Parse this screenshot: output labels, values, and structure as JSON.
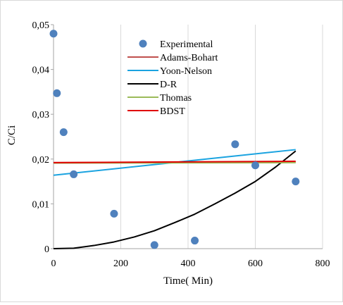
{
  "chart_data": {
    "type": "scatter",
    "title": "",
    "xlabel": "Time( Min)",
    "ylabel": "C/Ci",
    "xlim": [
      0,
      800
    ],
    "ylim": [
      0,
      0.05
    ],
    "x_ticks": [
      0,
      200,
      400,
      600,
      800
    ],
    "y_ticks": [
      0,
      0.01,
      0.02,
      0.03,
      0.04,
      0.05
    ],
    "x_tick_labels": [
      "0",
      "200",
      "400",
      "600",
      "800"
    ],
    "y_tick_labels": [
      "0",
      "0,01",
      "0,02",
      "0,03",
      "0,04",
      "0,05"
    ],
    "grid": "vertical",
    "legend_position": "top-center",
    "series": [
      {
        "name": "Experimental",
        "kind": "markers",
        "color": "#4f81bd",
        "x": [
          0,
          10,
          30,
          60,
          180,
          300,
          420,
          540,
          600,
          720
        ],
        "y": [
          0.048,
          0.0347,
          0.026,
          0.0166,
          0.0078,
          0.0008,
          0.0018,
          0.0233,
          0.0186,
          0.015
        ]
      },
      {
        "name": "Adams-Bohart",
        "kind": "line",
        "color": "#c0504d",
        "x": [
          0,
          720
        ],
        "y": [
          0.0192,
          0.0193
        ]
      },
      {
        "name": "Yoon-Nelson",
        "kind": "line",
        "color": "#1aa3e0",
        "x": [
          0,
          720
        ],
        "y": [
          0.0164,
          0.0221
        ]
      },
      {
        "name": "D-R",
        "kind": "line",
        "color": "#000000",
        "x": [
          0,
          60,
          120,
          180,
          240,
          300,
          360,
          420,
          480,
          540,
          600,
          660,
          720
        ],
        "y": [
          0,
          0.0001,
          0.0007,
          0.0015,
          0.0026,
          0.004,
          0.0058,
          0.0077,
          0.01,
          0.0124,
          0.015,
          0.0182,
          0.0218
        ]
      },
      {
        "name": "Thomas",
        "kind": "line",
        "color": "#9bbb59",
        "x": [
          0,
          720
        ],
        "y": [
          0.0191,
          0.0192
        ]
      },
      {
        "name": "BDST",
        "kind": "line",
        "color": "#e00000",
        "x": [
          0,
          720
        ],
        "y": [
          0.0192,
          0.0195
        ]
      }
    ]
  }
}
